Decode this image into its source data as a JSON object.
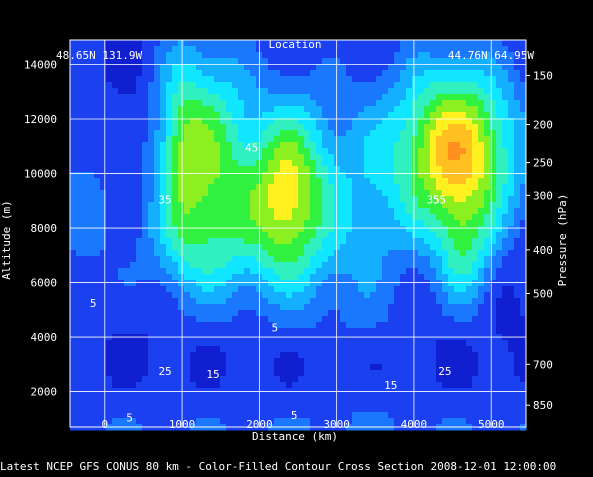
{
  "chart_data": {
    "type": "heatmap",
    "title": "Location",
    "left_location": "48.65N 131.9W",
    "right_location": "44.76N 64.95W",
    "footer": "Latest NCEP GFS CONUS 80 km - Color-Filled Contour Cross Section 2008-12-01 12:00:00",
    "xlabel": "Distance (km)",
    "ylabel_left": "Altitude (m)",
    "ylabel_right": "Pressure (hPa)",
    "xlim": [
      -450,
      5450
    ],
    "ylim": [
      700,
      14900
    ],
    "x_ticks": [
      0,
      1000,
      2000,
      3000,
      4000,
      5000
    ],
    "y_ticks": [
      2000,
      4000,
      6000,
      8000,
      10000,
      12000,
      14000
    ],
    "pressure_ticks": [
      {
        "label": "150",
        "altitude": 13600
      },
      {
        "label": "200",
        "altitude": 11800
      },
      {
        "label": "250",
        "altitude": 10400
      },
      {
        "label": "300",
        "altitude": 9200
      },
      {
        "label": "400",
        "altitude": 7200
      },
      {
        "label": "500",
        "altitude": 5600
      },
      {
        "label": "700",
        "altitude": 3000
      },
      {
        "label": "850",
        "altitude": 1500
      }
    ],
    "grid": true,
    "colormap": [
      "#1020d0",
      "#1a40f0",
      "#1a78ff",
      "#14b0ff",
      "#10e6ff",
      "#30f0c0",
      "#30f040",
      "#8cf020",
      "#fff020",
      "#ffc020",
      "#ff9020"
    ],
    "jets": [
      {
        "x": 1000,
        "y": 10800,
        "amp": 27,
        "sx": 260,
        "sy": 2600
      },
      {
        "x": 1500,
        "y": 10500,
        "amp": 22,
        "sx": 300,
        "sy": 3000
      },
      {
        "x": 2350,
        "y": 9200,
        "amp": 38,
        "sx": 380,
        "sy": 2400
      },
      {
        "x": 4550,
        "y": 10800,
        "amp": 44,
        "sx": 550,
        "sy": 2200
      },
      {
        "x": 4650,
        "y": 7000,
        "amp": 16,
        "sx": 250,
        "sy": 1500
      },
      {
        "x": 1200,
        "y": 7200,
        "amp": 10,
        "sx": 600,
        "sy": 1500
      },
      {
        "x": 3300,
        "y": 8500,
        "amp": 12,
        "sx": 450,
        "sy": 3500
      },
      {
        "x": -300,
        "y": 9000,
        "amp": 7,
        "sx": 400,
        "sy": 3000
      }
    ],
    "contour_labels": [
      {
        "text": "35",
        "x": 780,
        "y": 8900
      },
      {
        "text": "45",
        "x": 1900,
        "y": 10800
      },
      {
        "text": "35",
        "x": 4250,
        "y": 8900
      },
      {
        "text": "55",
        "x": 4330,
        "y": 8900
      },
      {
        "text": "5",
        "x": -150,
        "y": 5100
      },
      {
        "text": "5",
        "x": 2200,
        "y": 4200
      },
      {
        "text": "25",
        "x": 780,
        "y": 2600
      },
      {
        "text": "15",
        "x": 1400,
        "y": 2500
      },
      {
        "text": "15",
        "x": 3700,
        "y": 2100
      },
      {
        "text": "25",
        "x": 4400,
        "y": 2600
      },
      {
        "text": "5",
        "x": 320,
        "y": 900
      },
      {
        "text": "5",
        "x": 2450,
        "y": 1000
      }
    ]
  }
}
